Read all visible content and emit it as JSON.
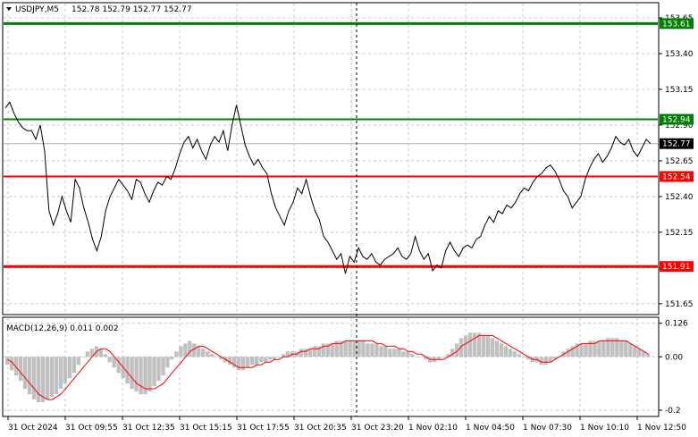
{
  "header": {
    "symbol": "USDJPY,M5",
    "ohlc": "152.78 152.79 152.77 152.77"
  },
  "macd_label": "MACD(12,26,9) 0.011 0.002",
  "colors": {
    "price_line": "#000000",
    "resistance": "#008000",
    "support": "#ff0000",
    "grid": "#c8c8c8",
    "histogram": "#c0c0c0",
    "signal": "#ff0000"
  },
  "chart_data": {
    "type": "line",
    "price_axis": {
      "range": [
        151.58,
        153.75
      ],
      "ticks": [
        "153.65",
        "153.40",
        "153.15",
        "152.90",
        "152.65",
        "152.40",
        "152.15",
        "151.90",
        "151.65"
      ],
      "tick_values": [
        153.65,
        153.4,
        153.15,
        152.9,
        152.65,
        152.4,
        152.15,
        151.9,
        151.65
      ]
    },
    "time_axis": {
      "labels": [
        "31 Oct 2024",
        "31 Oct 09:55",
        "31 Oct 12:35",
        "31 Oct 15:15",
        "31 Oct 17:55",
        "31 Oct 20:35",
        "31 Oct 23:20",
        "1 Nov 02:10",
        "1 Nov 04:50",
        "1 Nov 07:30",
        "1 Nov 10:10",
        "1 Nov 12:50"
      ]
    },
    "levels": [
      {
        "value": 153.61,
        "label": "153.61",
        "kind": "resistance",
        "style": "thick"
      },
      {
        "value": 152.94,
        "label": "152.94",
        "kind": "resistance",
        "style": "thin"
      },
      {
        "value": 152.54,
        "label": "152.54",
        "kind": "support",
        "style": "thin"
      },
      {
        "value": 151.91,
        "label": "151.91",
        "kind": "support",
        "style": "thick"
      }
    ],
    "current_price": {
      "value": 152.77,
      "label": "152.77"
    },
    "price_series": [
      153.02,
      153.06,
      152.98,
      152.92,
      152.88,
      152.86,
      152.86,
      152.8,
      152.9,
      152.72,
      152.3,
      152.2,
      152.28,
      152.4,
      152.3,
      152.22,
      152.52,
      152.46,
      152.32,
      152.22,
      152.1,
      152.02,
      152.12,
      152.3,
      152.4,
      152.46,
      152.52,
      152.48,
      152.44,
      152.38,
      152.52,
      152.5,
      152.42,
      152.36,
      152.44,
      152.5,
      152.48,
      152.54,
      152.52,
      152.6,
      152.7,
      152.78,
      152.82,
      152.74,
      152.8,
      152.72,
      152.66,
      152.76,
      152.82,
      152.78,
      152.86,
      152.72,
      152.9,
      153.04,
      152.9,
      152.76,
      152.68,
      152.62,
      152.66,
      152.6,
      152.56,
      152.42,
      152.32,
      152.26,
      152.2,
      152.3,
      152.36,
      152.46,
      152.42,
      152.52,
      152.4,
      152.3,
      152.24,
      152.12,
      152.08,
      152.02,
      151.96,
      152.0,
      151.86,
      151.98,
      151.94,
      152.04,
      151.98,
      151.96,
      152.0,
      151.94,
      151.92,
      151.96,
      151.98,
      152.0,
      152.04,
      151.98,
      151.96,
      152.0,
      152.12,
      152.02,
      151.96,
      152.0,
      151.88,
      151.92,
      151.9,
      152.02,
      152.08,
      152.02,
      151.98,
      152.04,
      152.06,
      152.04,
      152.1,
      152.12,
      152.2,
      152.26,
      152.22,
      152.3,
      152.28,
      152.34,
      152.32,
      152.36,
      152.42,
      152.46,
      152.44,
      152.5,
      152.54,
      152.56,
      152.6,
      152.62,
      152.58,
      152.52,
      152.44,
      152.4,
      152.32,
      152.36,
      152.4,
      152.52,
      152.6,
      152.66,
      152.7,
      152.64,
      152.68,
      152.74,
      152.82,
      152.78,
      152.76,
      152.8,
      152.72,
      152.68,
      152.74,
      152.8,
      152.77
    ],
    "macd_axis": {
      "ticks": [
        "0.126",
        "0.00",
        "-0.2"
      ],
      "tick_values": [
        0.126,
        0.0,
        -0.2
      ],
      "range": [
        -0.22,
        0.145
      ]
    },
    "macd_histogram": [
      -0.03,
      -0.05,
      -0.07,
      -0.09,
      -0.12,
      -0.14,
      -0.16,
      -0.17,
      -0.17,
      -0.16,
      -0.15,
      -0.14,
      -0.12,
      -0.1,
      -0.08,
      -0.06,
      -0.03,
      0.0,
      0.02,
      0.03,
      0.04,
      0.03,
      0.01,
      -0.02,
      -0.04,
      -0.06,
      -0.08,
      -0.1,
      -0.12,
      -0.13,
      -0.14,
      -0.14,
      -0.13,
      -0.11,
      -0.09,
      -0.07,
      -0.04,
      -0.01,
      0.02,
      0.04,
      0.05,
      0.06,
      0.05,
      0.04,
      0.03,
      0.02,
      0.01,
      0.0,
      -0.01,
      -0.02,
      -0.03,
      -0.04,
      -0.05,
      -0.05,
      -0.04,
      -0.03,
      -0.03,
      -0.02,
      -0.02,
      -0.01,
      -0.01,
      0.0,
      0.01,
      0.02,
      0.02,
      0.02,
      0.03,
      0.03,
      0.03,
      0.04,
      0.04,
      0.05,
      0.05,
      0.05,
      0.06,
      0.06,
      0.06,
      0.06,
      0.06,
      0.06,
      0.06,
      0.05,
      0.05,
      0.05,
      0.04,
      0.04,
      0.03,
      0.03,
      0.03,
      0.02,
      0.02,
      0.01,
      0.0,
      0.0,
      -0.01,
      -0.02,
      -0.02,
      -0.01,
      0.0,
      0.01,
      0.03,
      0.05,
      0.07,
      0.08,
      0.09,
      0.09,
      0.09,
      0.08,
      0.08,
      0.07,
      0.06,
      0.05,
      0.04,
      0.03,
      0.02,
      0.01,
      0.0,
      -0.01,
      -0.02,
      -0.02,
      -0.03,
      -0.03,
      -0.02,
      -0.01,
      0.0,
      0.02,
      0.03,
      0.04,
      0.05,
      0.05,
      0.05,
      0.06,
      0.06,
      0.06,
      0.06,
      0.07,
      0.07,
      0.07,
      0.06,
      0.06,
      0.05,
      0.04,
      0.03,
      0.02,
      0.01
    ],
    "macd_signal": [
      -0.01,
      -0.02,
      -0.04,
      -0.06,
      -0.08,
      -0.1,
      -0.12,
      -0.14,
      -0.15,
      -0.16,
      -0.16,
      -0.15,
      -0.14,
      -0.12,
      -0.1,
      -0.08,
      -0.06,
      -0.04,
      -0.02,
      0.0,
      0.02,
      0.03,
      0.03,
      0.02,
      0.0,
      -0.02,
      -0.04,
      -0.06,
      -0.08,
      -0.1,
      -0.11,
      -0.12,
      -0.12,
      -0.12,
      -0.11,
      -0.1,
      -0.08,
      -0.06,
      -0.04,
      -0.02,
      0.0,
      0.02,
      0.03,
      0.04,
      0.04,
      0.03,
      0.02,
      0.01,
      0.0,
      -0.01,
      -0.02,
      -0.03,
      -0.04,
      -0.04,
      -0.04,
      -0.04,
      -0.03,
      -0.03,
      -0.02,
      -0.02,
      -0.01,
      -0.01,
      0.0,
      0.0,
      0.01,
      0.01,
      0.02,
      0.02,
      0.03,
      0.03,
      0.03,
      0.04,
      0.04,
      0.05,
      0.05,
      0.05,
      0.06,
      0.06,
      0.06,
      0.06,
      0.06,
      0.06,
      0.06,
      0.05,
      0.05,
      0.04,
      0.04,
      0.04,
      0.03,
      0.03,
      0.02,
      0.02,
      0.01,
      0.01,
      0.0,
      -0.01,
      -0.01,
      -0.01,
      -0.01,
      0.0,
      0.01,
      0.02,
      0.04,
      0.05,
      0.06,
      0.07,
      0.08,
      0.08,
      0.08,
      0.08,
      0.07,
      0.06,
      0.05,
      0.04,
      0.03,
      0.02,
      0.01,
      0.0,
      -0.01,
      -0.01,
      -0.02,
      -0.02,
      -0.02,
      -0.01,
      0.0,
      0.01,
      0.02,
      0.03,
      0.04,
      0.05,
      0.05,
      0.05,
      0.05,
      0.06,
      0.06,
      0.06,
      0.06,
      0.06,
      0.06,
      0.06,
      0.05,
      0.04,
      0.03,
      0.02,
      0.01
    ]
  }
}
